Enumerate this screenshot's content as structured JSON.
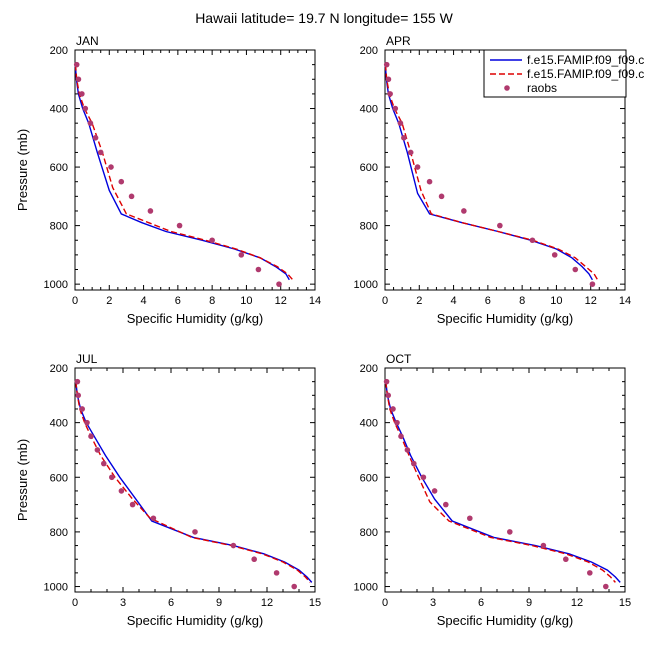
{
  "title": "Hawaii  latitude= 19.7 N longitude= 155 W",
  "colors": {
    "model1": "#0000dd",
    "model2": "#dd0000",
    "raobs": "#b03a6e"
  },
  "legend": {
    "placement": "top-right of APR panel",
    "entries": [
      {
        "label": "f.e15.FAMIP.f09_f09.c",
        "style": "solid",
        "color": "#0000dd"
      },
      {
        "label": "f.e15.FAMIP.f09_f09.c",
        "style": "dashed",
        "color": "#dd0000"
      },
      {
        "label": "raobs",
        "style": "marker",
        "color": "#b03a6e"
      }
    ]
  },
  "chart_data": [
    {
      "type": "line",
      "panel": "JAN",
      "xlabel": "Specific Humidity (g/kg)",
      "ylabel": "Pressure (mb)",
      "xlim": [
        0,
        14
      ],
      "ylim": [
        1020,
        200
      ],
      "y_reversed": true,
      "xticks": [
        0,
        2,
        4,
        6,
        8,
        10,
        12,
        14
      ],
      "yticks": [
        200,
        400,
        600,
        800,
        1000
      ],
      "series": [
        {
          "name": "f.e15.FAMIP.f09_f09.c",
          "style": "solid",
          "x": [
            0.02,
            0.08,
            0.2,
            0.45,
            0.8,
            1.3,
            2.0,
            2.7,
            3.9,
            5.3,
            7.4,
            9.3,
            10.8,
            11.7,
            12.3,
            12.5
          ],
          "y": [
            250,
            300,
            350,
            400,
            450,
            550,
            680,
            760,
            790,
            820,
            850,
            880,
            910,
            940,
            965,
            985
          ]
        },
        {
          "name": "f.e15.FAMIP.f09_f09.c",
          "style": "dashed",
          "x": [
            0.03,
            0.1,
            0.25,
            0.55,
            1.0,
            1.6,
            2.2,
            3.0,
            4.3,
            5.6,
            7.6,
            9.4,
            10.8,
            11.8,
            12.4,
            12.7
          ],
          "y": [
            250,
            300,
            350,
            400,
            450,
            550,
            670,
            760,
            790,
            820,
            850,
            880,
            910,
            940,
            965,
            985
          ]
        },
        {
          "name": "raobs",
          "style": "marker",
          "x": [
            0.1,
            0.2,
            0.4,
            0.6,
            0.9,
            1.2,
            1.5,
            2.1,
            2.7,
            3.3,
            4.4,
            6.1,
            8.0,
            9.7,
            10.7,
            11.9
          ],
          "y": [
            250,
            300,
            350,
            400,
            450,
            500,
            550,
            600,
            650,
            700,
            750,
            800,
            850,
            900,
            950,
            1000
          ]
        }
      ]
    },
    {
      "type": "line",
      "panel": "APR",
      "xlabel": "Specific Humidity (g/kg)",
      "ylabel": "",
      "xlim": [
        0,
        14
      ],
      "ylim": [
        1020,
        200
      ],
      "y_reversed": true,
      "xticks": [
        0,
        2,
        4,
        6,
        8,
        10,
        12,
        14
      ],
      "yticks": [
        200,
        400,
        600,
        800,
        1000
      ],
      "series": [
        {
          "name": "f.e15.FAMIP.f09_f09.c",
          "style": "solid",
          "x": [
            0.02,
            0.08,
            0.2,
            0.45,
            0.8,
            1.3,
            1.9,
            2.6,
            4.5,
            6.6,
            8.5,
            10.0,
            10.9,
            11.5,
            11.9,
            12.1
          ],
          "y": [
            250,
            300,
            350,
            400,
            450,
            550,
            690,
            760,
            790,
            820,
            850,
            880,
            910,
            940,
            965,
            985
          ]
        },
        {
          "name": "f.e15.FAMIP.f09_f09.c",
          "style": "dashed",
          "x": [
            0.03,
            0.1,
            0.25,
            0.55,
            1.0,
            1.5,
            2.1,
            2.7,
            4.5,
            6.6,
            8.6,
            10.1,
            11.1,
            11.7,
            12.2,
            12.4
          ],
          "y": [
            250,
            300,
            350,
            400,
            450,
            550,
            680,
            760,
            790,
            820,
            850,
            880,
            910,
            940,
            965,
            985
          ]
        },
        {
          "name": "raobs",
          "style": "marker",
          "x": [
            0.1,
            0.2,
            0.3,
            0.6,
            0.9,
            1.1,
            1.5,
            1.9,
            2.6,
            3.3,
            4.6,
            6.7,
            8.6,
            9.9,
            11.1,
            12.1
          ],
          "y": [
            250,
            300,
            350,
            400,
            450,
            500,
            550,
            600,
            650,
            700,
            750,
            800,
            850,
            900,
            950,
            1000
          ]
        }
      ]
    },
    {
      "type": "line",
      "panel": "JUL",
      "xlabel": "Specific Humidity (g/kg)",
      "ylabel": "Pressure (mb)",
      "xlim": [
        0,
        15
      ],
      "ylim": [
        1020,
        200
      ],
      "y_reversed": true,
      "xticks": [
        0,
        3,
        6,
        9,
        12,
        15
      ],
      "yticks": [
        200,
        400,
        600,
        800,
        1000
      ],
      "series": [
        {
          "name": "f.e15.FAMIP.f09_f09.c",
          "style": "solid",
          "x": [
            0.05,
            0.15,
            0.35,
            0.7,
            1.2,
            1.9,
            2.8,
            3.8,
            4.8,
            7.4,
            9.9,
            11.8,
            13.1,
            14.0,
            14.5,
            14.8
          ],
          "y": [
            250,
            300,
            350,
            400,
            450,
            520,
            600,
            680,
            760,
            820,
            850,
            880,
            910,
            940,
            965,
            985
          ]
        },
        {
          "name": "f.e15.FAMIP.f09_f09.c",
          "style": "dashed",
          "x": [
            0.05,
            0.15,
            0.3,
            0.6,
            1.0,
            1.6,
            2.5,
            3.6,
            4.7,
            7.3,
            9.8,
            11.7,
            13.0,
            13.9,
            14.4,
            14.7
          ],
          "y": [
            250,
            300,
            350,
            400,
            450,
            520,
            600,
            680,
            750,
            820,
            850,
            880,
            910,
            940,
            965,
            985
          ]
        },
        {
          "name": "raobs",
          "style": "marker",
          "x": [
            0.15,
            0.2,
            0.45,
            0.75,
            1.0,
            1.4,
            1.8,
            2.3,
            2.9,
            3.6,
            4.9,
            7.5,
            9.9,
            11.2,
            12.6,
            13.7
          ],
          "y": [
            250,
            300,
            350,
            400,
            450,
            500,
            550,
            600,
            650,
            700,
            750,
            800,
            850,
            900,
            950,
            1000
          ]
        }
      ]
    },
    {
      "type": "line",
      "panel": "OCT",
      "xlabel": "Specific Humidity (g/kg)",
      "ylabel": "",
      "xlim": [
        0,
        15
      ],
      "ylim": [
        1020,
        200
      ],
      "y_reversed": true,
      "xticks": [
        0,
        3,
        6,
        9,
        12,
        15
      ],
      "yticks": [
        200,
        400,
        600,
        800,
        1000
      ],
      "series": [
        {
          "name": "f.e15.FAMIP.f09_f09.c",
          "style": "solid",
          "x": [
            0.05,
            0.15,
            0.35,
            0.7,
            1.1,
            1.6,
            2.3,
            3.1,
            4.2,
            6.8,
            9.4,
            11.5,
            12.9,
            13.9,
            14.4,
            14.7
          ],
          "y": [
            250,
            300,
            350,
            400,
            450,
            520,
            600,
            680,
            760,
            820,
            850,
            880,
            910,
            940,
            965,
            985
          ]
        },
        {
          "name": "f.e15.FAMIP.f09_f09.c",
          "style": "dashed",
          "x": [
            0.05,
            0.15,
            0.3,
            0.6,
            1.0,
            1.5,
            2.1,
            2.8,
            4.0,
            6.6,
            9.2,
            11.3,
            12.7,
            13.6,
            14.1,
            14.4
          ],
          "y": [
            250,
            300,
            350,
            400,
            450,
            520,
            600,
            690,
            760,
            820,
            850,
            880,
            910,
            940,
            965,
            985
          ]
        },
        {
          "name": "raobs",
          "style": "marker",
          "x": [
            0.1,
            0.2,
            0.5,
            0.75,
            1.0,
            1.4,
            1.8,
            2.4,
            3.1,
            3.8,
            5.3,
            7.8,
            9.9,
            11.3,
            12.8,
            13.8
          ],
          "y": [
            250,
            300,
            350,
            400,
            450,
            500,
            550,
            600,
            650,
            700,
            750,
            800,
            850,
            900,
            950,
            1000
          ]
        }
      ]
    }
  ]
}
